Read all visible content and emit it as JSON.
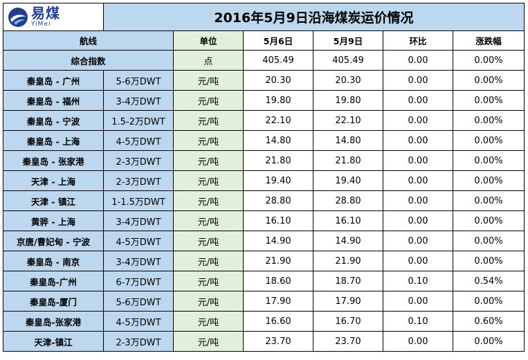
{
  "logo": {
    "cn": "易煤",
    "en": "YiMei",
    "icon": "yimei-logo-icon"
  },
  "title": "2016年5月9日沿海煤炭运价情况",
  "header": {
    "route": "航线",
    "unit": "单位",
    "date1": "5月6日",
    "date2": "5月9日",
    "mom": "环比",
    "change": "涨跌幅"
  },
  "index_row": {
    "label": "综合指数",
    "unit": "点",
    "v1": "405.49",
    "v2": "405.49",
    "mom": "0.00",
    "change": "0.00%"
  },
  "rows": [
    {
      "route": "秦皇岛 - 广州",
      "size": "5-6万DWT",
      "unit": "元/吨",
      "v1": "20.30",
      "v2": "20.30",
      "mom": "0.00",
      "change": "0.00%"
    },
    {
      "route": "秦皇岛 - 福州",
      "size": "3-4万DWT",
      "unit": "元/吨",
      "v1": "19.80",
      "v2": "19.80",
      "mom": "0.00",
      "change": "0.00%"
    },
    {
      "route": "秦皇岛 - 宁波",
      "size": "1.5-2万DWT",
      "unit": "元/吨",
      "v1": "22.10",
      "v2": "22.10",
      "mom": "0.00",
      "change": "0.00%"
    },
    {
      "route": "秦皇岛 - 上海",
      "size": "4-5万DWT",
      "unit": "元/吨",
      "v1": "14.80",
      "v2": "14.80",
      "mom": "0.00",
      "change": "0.00%"
    },
    {
      "route": "秦皇岛 - 张家港",
      "size": "2-3万DWT",
      "unit": "元/吨",
      "v1": "21.80",
      "v2": "21.80",
      "mom": "0.00",
      "change": "0.00%"
    },
    {
      "route": "天津 - 上海",
      "size": "2-3万DWT",
      "unit": "元/吨",
      "v1": "19.40",
      "v2": "19.40",
      "mom": "0.00",
      "change": "0.00%"
    },
    {
      "route": "天津 - 镇江",
      "size": "1-1.5万DWT",
      "unit": "元/吨",
      "v1": "28.80",
      "v2": "28.80",
      "mom": "0.00",
      "change": "0.00%"
    },
    {
      "route": "黄骅 - 上海",
      "size": "3-4万DWT",
      "unit": "元/吨",
      "v1": "16.10",
      "v2": "16.10",
      "mom": "0.00",
      "change": "0.00%"
    },
    {
      "route": "京唐/曹妃甸 - 宁波",
      "size": "4-5万DWT",
      "unit": "元/吨",
      "v1": "14.90",
      "v2": "14.90",
      "mom": "0.00",
      "change": "0.00%"
    },
    {
      "route": "秦皇岛 - 南京",
      "size": "3-4万DWT",
      "unit": "元/吨",
      "v1": "21.90",
      "v2": "21.90",
      "mom": "0.00",
      "change": "0.00%"
    },
    {
      "route": "秦皇岛-广州",
      "size": "6-7万DWT",
      "unit": "元/吨",
      "v1": "18.60",
      "v2": "18.70",
      "mom": "0.10",
      "change": "0.54%"
    },
    {
      "route": "秦皇岛-厦门",
      "size": "5-6万DWT",
      "unit": "元/吨",
      "v1": "17.90",
      "v2": "17.90",
      "mom": "0.00",
      "change": "0.00%"
    },
    {
      "route": "秦皇岛-张家港",
      "size": "4-5万DWT",
      "unit": "元/吨",
      "v1": "16.60",
      "v2": "16.70",
      "mom": "0.10",
      "change": "0.60%"
    },
    {
      "route": "天津-镇江",
      "size": "2-3万DWT",
      "unit": "元/吨",
      "v1": "23.70",
      "v2": "23.70",
      "mom": "0.00",
      "change": "0.00%"
    }
  ],
  "colors": {
    "blue": "#bcd7ee",
    "green": "#e2efda",
    "logo_blue": "#1f3e8e"
  }
}
